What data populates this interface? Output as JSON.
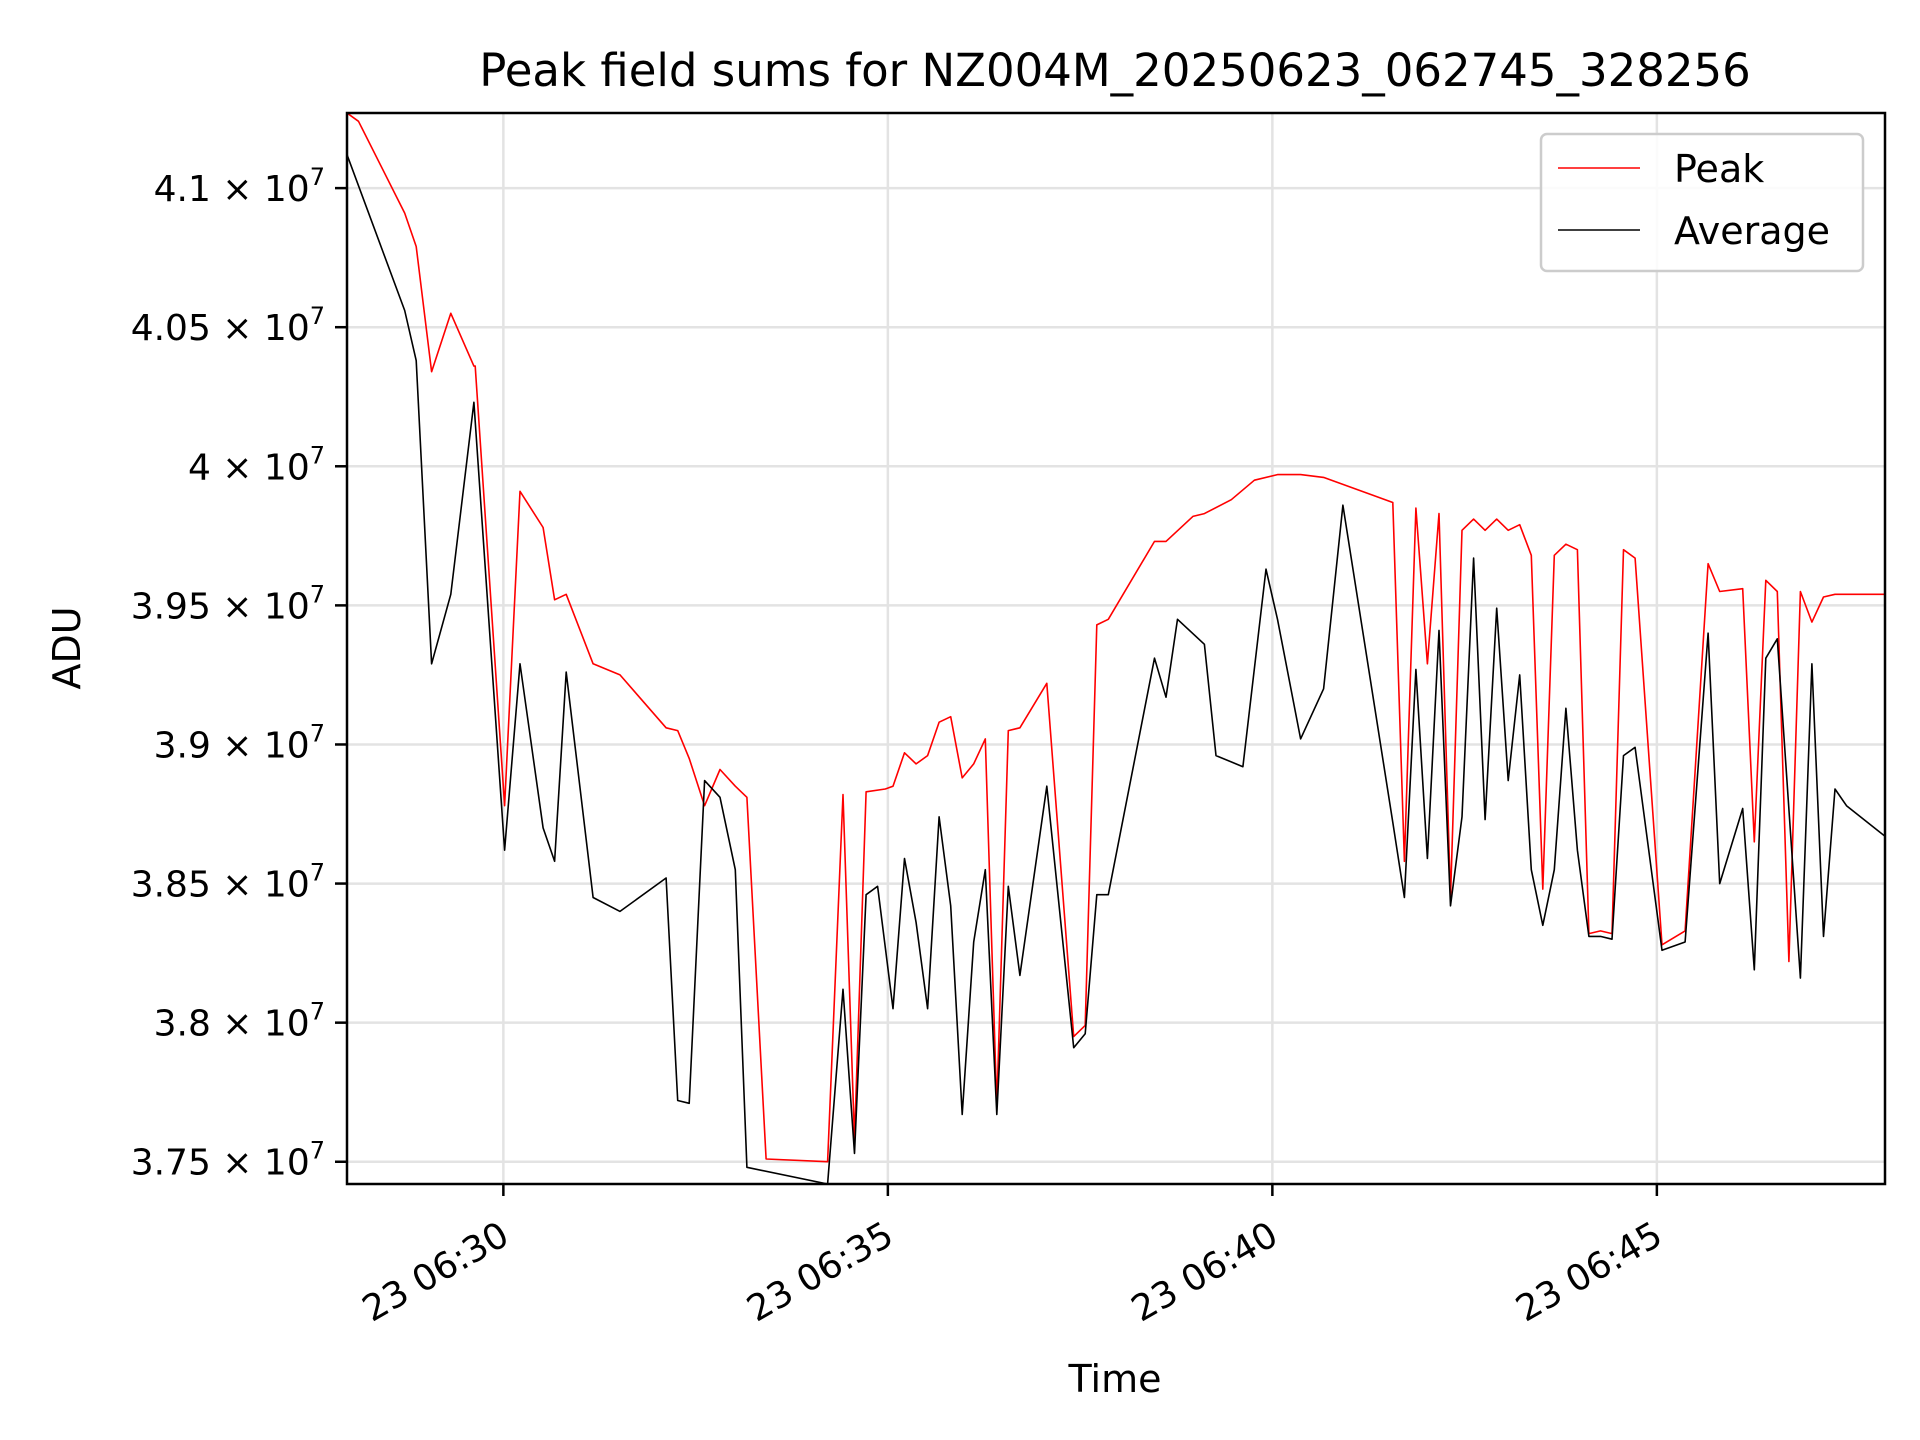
{
  "chart_data": {
    "type": "line",
    "title": "Peak field sums for NZ004M_20250623_062745_328256",
    "xlabel": "Time",
    "ylabel": "ADU",
    "x_tick_labels": [
      "23 06:30",
      "23 06:35",
      "23 06:40",
      "23 06:45"
    ],
    "x_tick_values": [
      "2025-06-23 06:30",
      "2025-06-23 06:35",
      "2025-06-23 06:40",
      "2025-06-23 06:45"
    ],
    "xlim": [
      "2025-06-23 06:27:58",
      "2025-06-23 06:47:58"
    ],
    "y_tick_labels": [
      {
        "mantissa": "3.75",
        "exp": "7"
      },
      {
        "mantissa": "3.8",
        "exp": "7"
      },
      {
        "mantissa": "3.85",
        "exp": "7"
      },
      {
        "mantissa": "3.9",
        "exp": "7"
      },
      {
        "mantissa": "3.95",
        "exp": "7"
      },
      {
        "mantissa": "4",
        "exp": "7"
      },
      {
        "mantissa": "4.05",
        "exp": "7"
      },
      {
        "mantissa": "4.1",
        "exp": "7"
      }
    ],
    "y_tick_values": [
      37500000,
      38000000,
      38500000,
      39000000,
      39500000,
      40000000,
      40500000,
      41000000
    ],
    "ylim": [
      37420000,
      41270000
    ],
    "grid": true,
    "legend_position": "top-right",
    "colors": {
      "Peak": "#ff0000",
      "Average": "#000000"
    },
    "series": [
      {
        "name": "Peak",
        "color": "#ff0000",
        "points": [
          [
            "06:27:58",
            41270000
          ],
          [
            "06:28:07",
            41240000
          ],
          [
            "06:28:43",
            40910000
          ],
          [
            "06:28:52",
            40790000
          ],
          [
            "06:29:04",
            40340000
          ],
          [
            "06:29:19",
            40550000
          ],
          [
            "06:29:37",
            40360000
          ],
          [
            "06:29:38",
            40360000
          ],
          [
            "06:30:01",
            38780000
          ],
          [
            "06:30:13",
            39910000
          ],
          [
            "06:30:31",
            39780000
          ],
          [
            "06:30:40",
            39520000
          ],
          [
            "06:30:49",
            39540000
          ],
          [
            "06:31:10",
            39290000
          ],
          [
            "06:31:31",
            39250000
          ],
          [
            "06:32:07",
            39060000
          ],
          [
            "06:32:16",
            39050000
          ],
          [
            "06:32:25",
            38950000
          ],
          [
            "06:32:37",
            38780000
          ],
          [
            "06:32:49",
            38910000
          ],
          [
            "06:33:01",
            38850000
          ],
          [
            "06:33:10",
            38810000
          ],
          [
            "06:33:25",
            37510000
          ],
          [
            "06:34:13",
            37500000
          ],
          [
            "06:34:25",
            38820000
          ],
          [
            "06:34:34",
            37580000
          ],
          [
            "06:34:43",
            38830000
          ],
          [
            "06:34:58",
            38840000
          ],
          [
            "06:35:04",
            38850000
          ],
          [
            "06:35:13",
            38970000
          ],
          [
            "06:35:22",
            38930000
          ],
          [
            "06:35:31",
            38960000
          ],
          [
            "06:35:40",
            39080000
          ],
          [
            "06:35:49",
            39100000
          ],
          [
            "06:35:58",
            38880000
          ],
          [
            "06:36:07",
            38930000
          ],
          [
            "06:36:16",
            39020000
          ],
          [
            "06:36:25",
            37700000
          ],
          [
            "06:36:34",
            39050000
          ],
          [
            "06:36:43",
            39060000
          ],
          [
            "06:37:04",
            39220000
          ],
          [
            "06:37:25",
            37950000
          ],
          [
            "06:37:34",
            37990000
          ],
          [
            "06:37:43",
            39430000
          ],
          [
            "06:37:52",
            39450000
          ],
          [
            "06:38:28",
            39730000
          ],
          [
            "06:38:37",
            39730000
          ],
          [
            "06:38:58",
            39820000
          ],
          [
            "06:39:07",
            39830000
          ],
          [
            "06:39:28",
            39880000
          ],
          [
            "06:39:46",
            39950000
          ],
          [
            "06:40:04",
            39970000
          ],
          [
            "06:40:22",
            39970000
          ],
          [
            "06:40:40",
            39960000
          ],
          [
            "06:41:16",
            39900000
          ],
          [
            "06:41:34",
            39870000
          ],
          [
            "06:41:43",
            38580000
          ],
          [
            "06:41:52",
            39850000
          ],
          [
            "06:42:01",
            39290000
          ],
          [
            "06:42:10",
            39830000
          ],
          [
            "06:42:19",
            38450000
          ],
          [
            "06:42:28",
            39770000
          ],
          [
            "06:42:37",
            39810000
          ],
          [
            "06:42:46",
            39770000
          ],
          [
            "06:42:55",
            39810000
          ],
          [
            "06:43:04",
            39770000
          ],
          [
            "06:43:13",
            39790000
          ],
          [
            "06:43:22",
            39680000
          ],
          [
            "06:43:31",
            38480000
          ],
          [
            "06:43:40",
            39680000
          ],
          [
            "06:43:49",
            39720000
          ],
          [
            "06:43:58",
            39700000
          ],
          [
            "06:44:07",
            38320000
          ],
          [
            "06:44:16",
            38330000
          ],
          [
            "06:44:25",
            38320000
          ],
          [
            "06:44:34",
            39700000
          ],
          [
            "06:44:43",
            39670000
          ],
          [
            "06:45:04",
            38280000
          ],
          [
            "06:45:22",
            38330000
          ],
          [
            "06:45:40",
            39650000
          ],
          [
            "06:45:49",
            39550000
          ],
          [
            "06:46:07",
            39560000
          ],
          [
            "06:46:16",
            38650000
          ],
          [
            "06:46:25",
            39590000
          ],
          [
            "06:46:34",
            39550000
          ],
          [
            "06:46:43",
            38220000
          ],
          [
            "06:46:52",
            39550000
          ],
          [
            "06:47:01",
            39440000
          ],
          [
            "06:47:10",
            39530000
          ],
          [
            "06:47:19",
            39540000
          ],
          [
            "06:47:58",
            39540000
          ]
        ]
      },
      {
        "name": "Average",
        "color": "#000000",
        "points": [
          [
            "06:27:58",
            41120000
          ],
          [
            "06:28:43",
            40560000
          ],
          [
            "06:28:52",
            40380000
          ],
          [
            "06:29:04",
            39290000
          ],
          [
            "06:29:19",
            39540000
          ],
          [
            "06:29:37",
            40230000
          ],
          [
            "06:30:01",
            38620000
          ],
          [
            "06:30:13",
            39290000
          ],
          [
            "06:30:31",
            38700000
          ],
          [
            "06:30:40",
            38580000
          ],
          [
            "06:30:49",
            39260000
          ],
          [
            "06:31:10",
            38450000
          ],
          [
            "06:31:31",
            38400000
          ],
          [
            "06:32:07",
            38520000
          ],
          [
            "06:32:16",
            37720000
          ],
          [
            "06:32:25",
            37710000
          ],
          [
            "06:32:37",
            38870000
          ],
          [
            "06:32:49",
            38810000
          ],
          [
            "06:33:01",
            38550000
          ],
          [
            "06:33:10",
            37480000
          ],
          [
            "06:34:13",
            37420000
          ],
          [
            "06:34:25",
            38120000
          ],
          [
            "06:34:34",
            37530000
          ],
          [
            "06:34:43",
            38460000
          ],
          [
            "06:34:52",
            38490000
          ],
          [
            "06:35:04",
            38050000
          ],
          [
            "06:35:13",
            38590000
          ],
          [
            "06:35:22",
            38360000
          ],
          [
            "06:35:31",
            38050000
          ],
          [
            "06:35:40",
            38740000
          ],
          [
            "06:35:49",
            38420000
          ],
          [
            "06:35:58",
            37670000
          ],
          [
            "06:36:07",
            38290000
          ],
          [
            "06:36:16",
            38550000
          ],
          [
            "06:36:25",
            37670000
          ],
          [
            "06:36:34",
            38490000
          ],
          [
            "06:36:43",
            38170000
          ],
          [
            "06:37:04",
            38850000
          ],
          [
            "06:37:25",
            37910000
          ],
          [
            "06:37:34",
            37960000
          ],
          [
            "06:37:43",
            38460000
          ],
          [
            "06:37:52",
            38460000
          ],
          [
            "06:38:28",
            39310000
          ],
          [
            "06:38:37",
            39170000
          ],
          [
            "06:38:46",
            39450000
          ],
          [
            "06:39:07",
            39360000
          ],
          [
            "06:39:16",
            38960000
          ],
          [
            "06:39:37",
            38920000
          ],
          [
            "06:39:55",
            39630000
          ],
          [
            "06:40:04",
            39450000
          ],
          [
            "06:40:22",
            39020000
          ],
          [
            "06:40:40",
            39200000
          ],
          [
            "06:40:55",
            39860000
          ],
          [
            "06:41:34",
            38720000
          ],
          [
            "06:41:43",
            38450000
          ],
          [
            "06:41:52",
            39270000
          ],
          [
            "06:42:01",
            38590000
          ],
          [
            "06:42:10",
            39410000
          ],
          [
            "06:42:19",
            38420000
          ],
          [
            "06:42:28",
            38740000
          ],
          [
            "06:42:37",
            39670000
          ],
          [
            "06:42:46",
            38730000
          ],
          [
            "06:42:55",
            39490000
          ],
          [
            "06:43:04",
            38870000
          ],
          [
            "06:43:13",
            39250000
          ],
          [
            "06:43:22",
            38550000
          ],
          [
            "06:43:31",
            38350000
          ],
          [
            "06:43:40",
            38550000
          ],
          [
            "06:43:49",
            39130000
          ],
          [
            "06:43:58",
            38620000
          ],
          [
            "06:44:07",
            38310000
          ],
          [
            "06:44:16",
            38310000
          ],
          [
            "06:44:25",
            38300000
          ],
          [
            "06:44:34",
            38960000
          ],
          [
            "06:44:43",
            38990000
          ],
          [
            "06:45:04",
            38260000
          ],
          [
            "06:45:22",
            38290000
          ],
          [
            "06:45:40",
            39400000
          ],
          [
            "06:45:49",
            38500000
          ],
          [
            "06:46:07",
            38770000
          ],
          [
            "06:46:16",
            38190000
          ],
          [
            "06:46:25",
            39310000
          ],
          [
            "06:46:34",
            39380000
          ],
          [
            "06:46:52",
            38160000
          ],
          [
            "06:47:01",
            39290000
          ],
          [
            "06:47:10",
            38310000
          ],
          [
            "06:47:19",
            38840000
          ],
          [
            "06:47:28",
            38780000
          ],
          [
            "06:47:58",
            38670000
          ]
        ]
      }
    ]
  }
}
